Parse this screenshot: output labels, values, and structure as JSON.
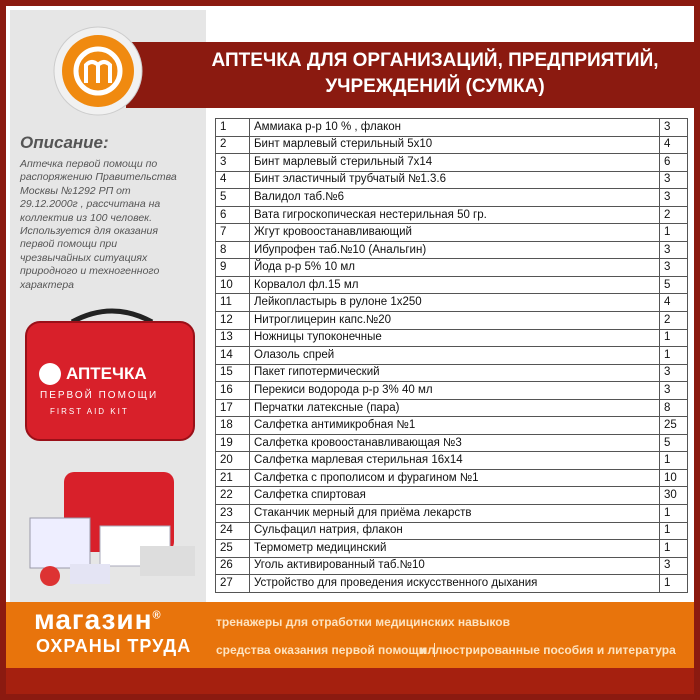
{
  "header": {
    "title_lines": [
      "АПТЕЧКА ДЛЯ ОРГАНИЗАЦИЙ, ПРЕДПРИЯТИЙ,",
      "УЧРЕЖДЕНИЙ (СУМКА)"
    ]
  },
  "description": {
    "heading": "Описание:",
    "lines": [
      "Аптечка первой помощи по",
      "распоряжению Правительства",
      "Москвы №1292 РП от",
      "29.12.2000г , рассчитана на",
      "коллектив из 100 человек.",
      "Используется для оказания",
      "первой помощи при",
      "чрезвычайных ситуациях",
      "природного и техногенного",
      "характера"
    ]
  },
  "bag": {
    "label": "АПТЕЧКА",
    "sub": "ПЕРВОЙ ПОМОЩИ",
    "en": "FIRST AID KIT"
  },
  "table": {
    "rows": [
      [
        1,
        "Аммиака р-р 10 % , флакон",
        3
      ],
      [
        2,
        "Бинт марлевый стерильный 5х10",
        4
      ],
      [
        3,
        "Бинт марлевый стерильный 7х14",
        6
      ],
      [
        4,
        "Бинт эластичный трубчатый №1.3.6",
        3
      ],
      [
        5,
        "Валидол таб.№6",
        3
      ],
      [
        6,
        "Вата гигроскопическая нестерильная 50 гр.",
        2
      ],
      [
        7,
        "Жгут кровоостанавливающий",
        1
      ],
      [
        8,
        "Ибупрофен таб.№10 (Анальгин)",
        3
      ],
      [
        9,
        "Йода р-р 5% 10 мл",
        3
      ],
      [
        10,
        "Корвалол фл.15 мл",
        5
      ],
      [
        11,
        "Лейкопластырь в рулоне 1х250",
        4
      ],
      [
        12,
        "Нитроглицерин капс.№20",
        2
      ],
      [
        13,
        "Ножницы тупоконечные",
        1
      ],
      [
        14,
        "Олазоль спрей",
        1
      ],
      [
        15,
        "Пакет гипотермический",
        3
      ],
      [
        16,
        "Перекиси водорода р-р 3% 40 мл",
        3
      ],
      [
        17,
        "Перчатки латексные (пара)",
        8
      ],
      [
        18,
        "Салфетка антимикробная №1",
        25
      ],
      [
        19,
        "Салфетка кровоостанавливающая №3",
        5
      ],
      [
        20,
        "Салфетка марлевая стерильная 16х14",
        1
      ],
      [
        21,
        "Салфетка с прополисом и фурагином №1",
        10
      ],
      [
        22,
        "Салфетка спиртовая",
        30
      ],
      [
        23,
        "Стаканчик мерный для приёма лекарств",
        1
      ],
      [
        24,
        "Сульфацил натрия, флакон",
        1
      ],
      [
        25,
        "Термометр медицинский",
        1
      ],
      [
        26,
        "Уголь активированный таб.№10",
        3
      ],
      [
        27,
        "Устройство для проведения искусственного дыхания",
        1
      ]
    ]
  },
  "footer": {
    "brand": "магазин",
    "brand_mark": "®",
    "brand_sub": "ОХРАНЫ ТРУДА",
    "links": [
      "тренажеры для отработки медицинских навыков",
      "средства оказания первой помощи",
      "иллюстрированные пособия и литература"
    ]
  }
}
